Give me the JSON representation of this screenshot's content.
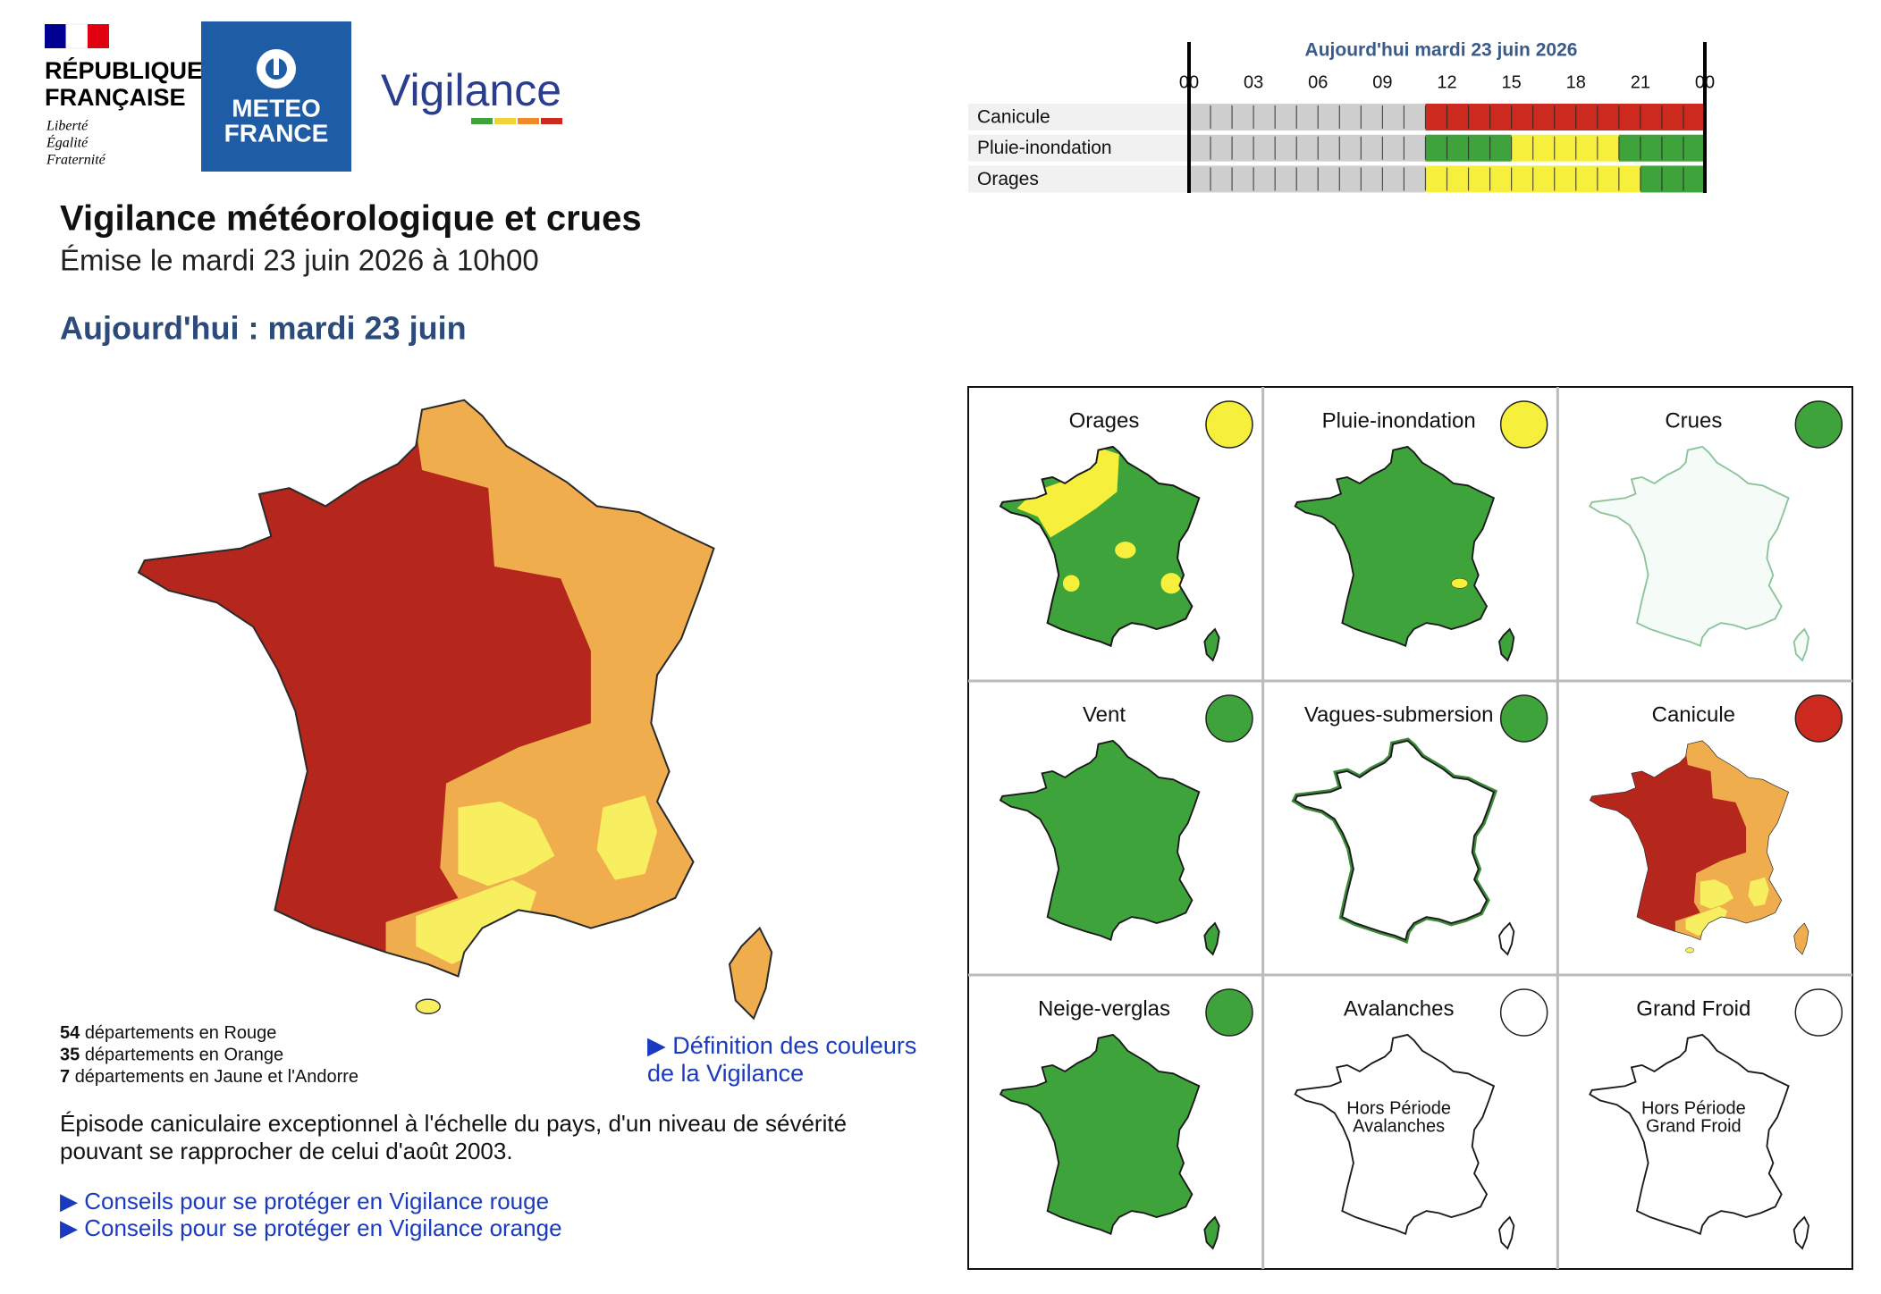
{
  "header": {
    "republique": [
      "RÉPUBLIQUE",
      "FRANÇAISE"
    ],
    "motto": [
      "Liberté",
      "Égalité",
      "Fraternité"
    ],
    "meteo_france": [
      "METEO",
      "FRANCE"
    ],
    "brand": "Vigilance"
  },
  "title": "Vigilance météorologique et crues",
  "issued": "Émise le mardi 23 juin 2026 à 10h00",
  "day_heading": "Aujourd'hui : mardi 23 juin",
  "timeline": {
    "title": "Aujourd'hui mardi 23 juin 2026",
    "hours": [
      "00",
      "03",
      "06",
      "09",
      "12",
      "15",
      "18",
      "21",
      "00"
    ],
    "rows": [
      {
        "label": "Canicule",
        "segments": [
          {
            "color": "#cfcfcf",
            "from": 0,
            "to": 11
          },
          {
            "color": "#cc2a1e",
            "from": 11,
            "to": 24
          }
        ]
      },
      {
        "label": "Pluie-inondation",
        "segments": [
          {
            "color": "#cfcfcf",
            "from": 0,
            "to": 11
          },
          {
            "color": "#3ea33a",
            "from": 11,
            "to": 15
          },
          {
            "color": "#f6ef3c",
            "from": 15,
            "to": 20
          },
          {
            "color": "#3ea33a",
            "from": 20,
            "to": 24
          }
        ]
      },
      {
        "label": "Orages",
        "segments": [
          {
            "color": "#cfcfcf",
            "from": 0,
            "to": 11
          },
          {
            "color": "#f6ef3c",
            "from": 11,
            "to": 21
          },
          {
            "color": "#3ea33a",
            "from": 21,
            "to": 24
          }
        ]
      }
    ]
  },
  "summary": [
    {
      "count": 54,
      "text": "départements en Rouge"
    },
    {
      "count": 35,
      "text": "départements en Orange"
    },
    {
      "count": 7,
      "text": "départements en Jaune et l'Andorre"
    }
  ],
  "definition_link": [
    "▶ Définition des couleurs",
    "de la Vigilance"
  ],
  "description": [
    "Épisode caniculaire exceptionnel à l'échelle du pays, d'un niveau de sévérité",
    "pouvant se rapprocher de celui d'août 2003."
  ],
  "advice_links": [
    "▶ Conseils pour se protéger en Vigilance rouge",
    "▶ Conseils pour se protéger en Vigilance orange"
  ],
  "maps": [
    {
      "title": "Orages",
      "level_color": "#f6ef3c"
    },
    {
      "title": "Pluie-inondation",
      "level_color": "#f6ef3c"
    },
    {
      "title": "Crues",
      "level_color": "#3ea33a"
    },
    {
      "title": "Vent",
      "level_color": "#3ea33a"
    },
    {
      "title": "Vagues-submersion",
      "level_color": "#3ea33a"
    },
    {
      "title": "Canicule",
      "level_color": "#cc2a1e"
    },
    {
      "title": "Neige-verglas",
      "level_color": "#3ea33a"
    },
    {
      "title": "Avalanches",
      "level_color": "#ffffff",
      "note": [
        "Hors Période",
        "Avalanches"
      ]
    },
    {
      "title": "Grand Froid",
      "level_color": "#ffffff",
      "note": [
        "Hors Période",
        "Grand Froid"
      ]
    }
  ]
}
